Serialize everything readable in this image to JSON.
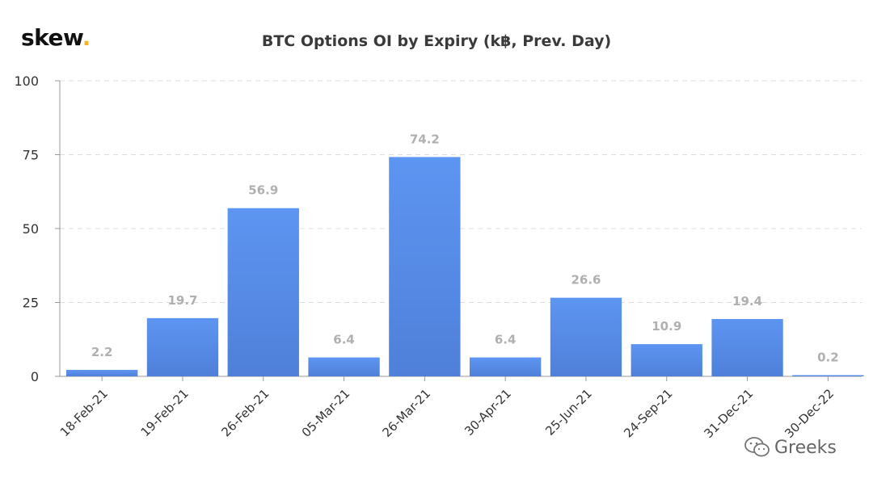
{
  "logo": {
    "text": "skew",
    "dot": "."
  },
  "watermark": {
    "text": "Greeks",
    "icon": "wechat-icon"
  },
  "colors": {
    "bar_top": "#5d95f2",
    "bar_bottom": "#4f80d9",
    "grid": "#dddddd",
    "axis": "#999999",
    "logo_dot": "#f0b429"
  },
  "chart_data": {
    "type": "bar",
    "title": "BTC Options OI by Expiry (k฿, Prev. Day)",
    "xlabel": "",
    "ylabel": "",
    "categories": [
      "18-Feb-21",
      "19-Feb-21",
      "26-Feb-21",
      "05-Mar-21",
      "26-Mar-21",
      "30-Apr-21",
      "25-Jun-21",
      "24-Sep-21",
      "31-Dec-21",
      "30-Dec-22"
    ],
    "values": [
      2.2,
      19.7,
      56.9,
      6.4,
      74.2,
      6.4,
      26.6,
      10.9,
      19.4,
      0.2
    ],
    "data_labels": [
      "2.2",
      "19.7",
      "56.9",
      "6.4",
      "74.2",
      "6.4",
      "26.6",
      "10.9",
      "19.4",
      "0.2"
    ],
    "yticks": [
      "0",
      "25",
      "50",
      "75",
      "100"
    ],
    "ylim": [
      0,
      100
    ],
    "grid": true,
    "grid_style": "dashed",
    "legend": "none"
  }
}
